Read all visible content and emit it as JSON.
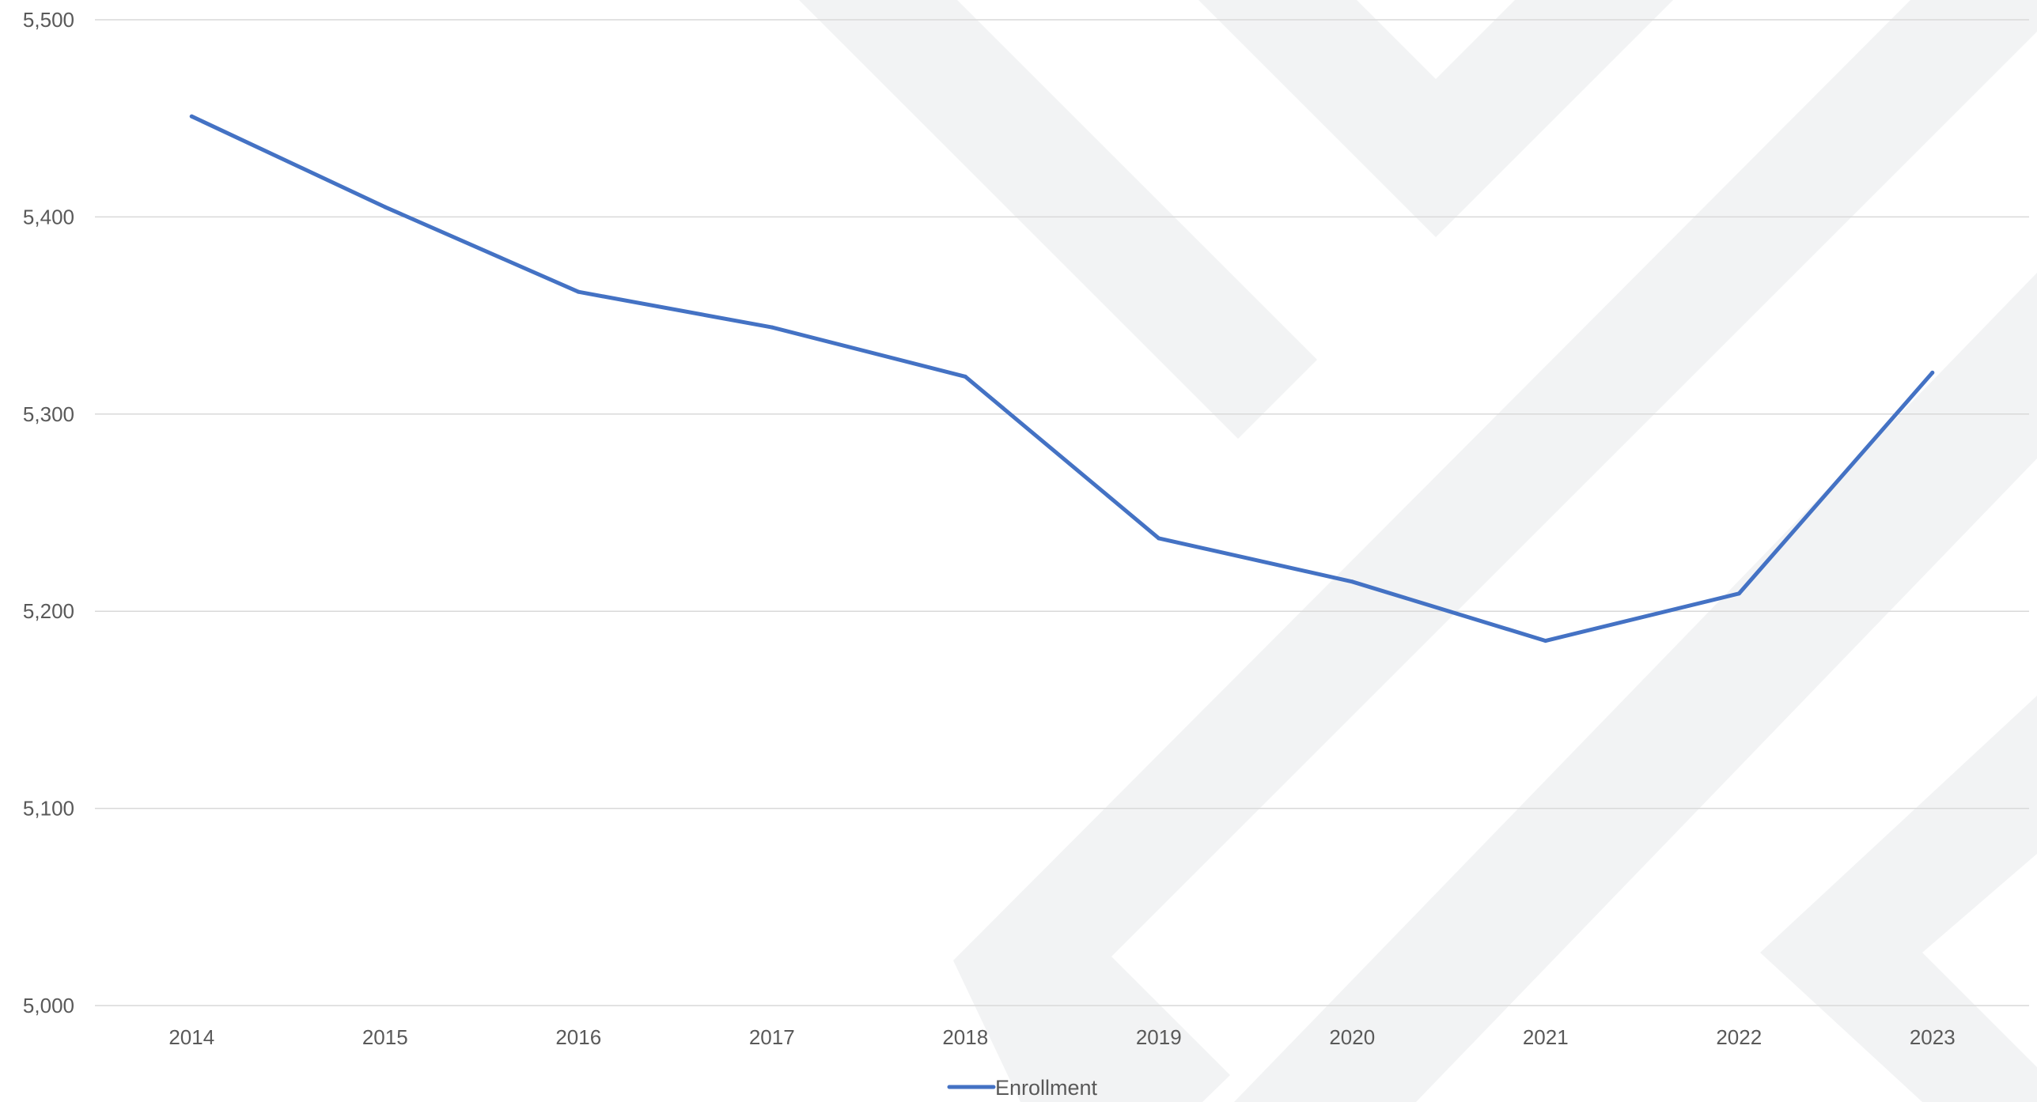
{
  "chart_data": {
    "type": "line",
    "categories": [
      "2014",
      "2015",
      "2016",
      "2017",
      "2018",
      "2019",
      "2020",
      "2021",
      "2022",
      "2023"
    ],
    "series": [
      {
        "name": "Enrollment",
        "color": "#4472c4",
        "values": [
          5451,
          5405,
          5362,
          5344,
          5319,
          5237,
          5215,
          5185,
          5209,
          5321
        ]
      }
    ],
    "ylim": [
      5000,
      5500
    ],
    "yticks": [
      5000,
      5100,
      5200,
      5300,
      5400,
      5500
    ],
    "ytick_labels": [
      "5,000",
      "5,100",
      "5,200",
      "5,300",
      "5,400",
      "5,500"
    ],
    "grid": true,
    "legend_position": "bottom",
    "title": "",
    "xlabel": "",
    "ylabel": ""
  },
  "colors": {
    "watermark": "#f2f3f4",
    "gridline": "#d9d9d9",
    "text": "#595959"
  }
}
